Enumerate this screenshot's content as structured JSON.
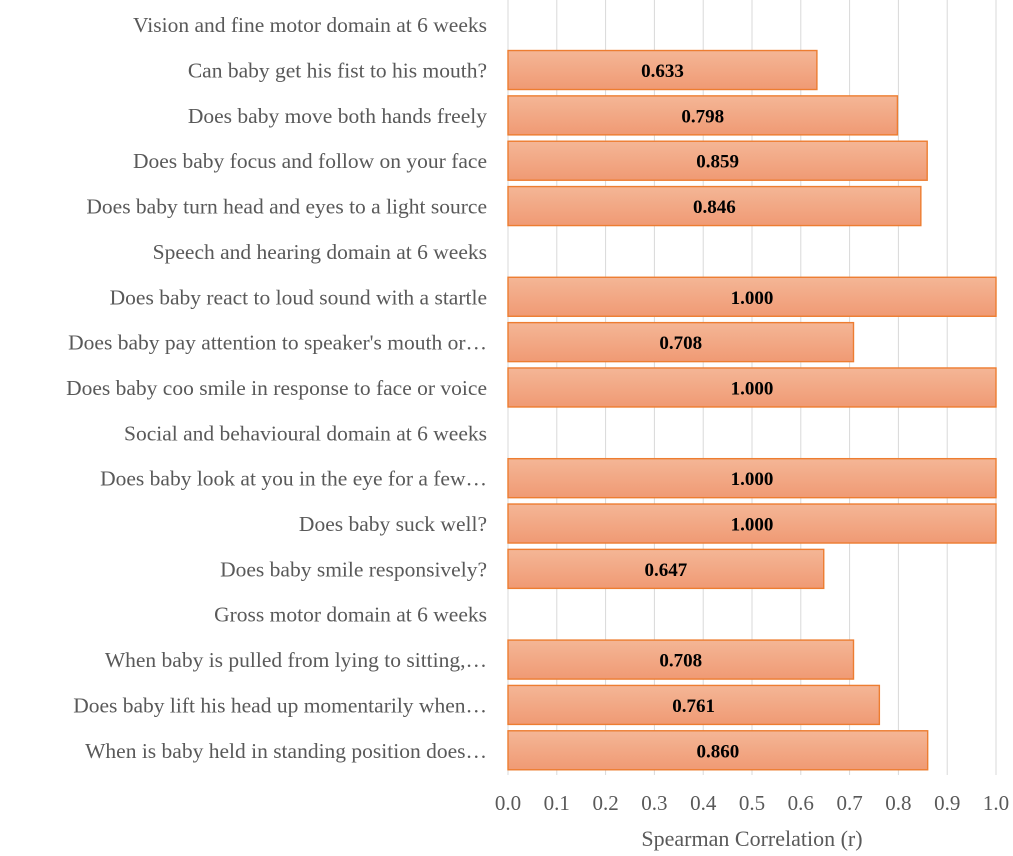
{
  "chart_data": {
    "type": "bar",
    "orientation": "horizontal",
    "title": "",
    "xlabel": "Spearman Correlation (r)",
    "ylabel": "",
    "xlim": [
      0.0,
      1.0
    ],
    "x_ticks": [
      "0.0",
      "0.1",
      "0.2",
      "0.3",
      "0.4",
      "0.5",
      "0.6",
      "0.7",
      "0.8",
      "0.9",
      "1.0"
    ],
    "grid": "vertical",
    "legend": "none",
    "categories": [
      "Vision and fine motor domain at 6 weeks",
      "Can baby get his fist to his mouth?",
      "Does baby move both hands freely",
      "Does baby focus and follow on your face",
      "Does baby turn head and eyes to a light source",
      "Speech and hearing domain at 6 weeks",
      "Does baby react to loud sound with a startle",
      "Does baby pay attention to speaker's mouth or…",
      "Does baby coo smile in response to face or voice",
      "Social and behavioural domain at 6 weeks",
      "Does baby look at you in the eye for a few…",
      "Does baby suck well?",
      "Does baby smile responsively?",
      "Gross motor domain at 6 weeks",
      "When baby is pulled from lying to sitting,…",
      "Does baby lift his head up momentarily when…",
      "When is baby held in standing position does…"
    ],
    "values": [
      null,
      0.633,
      0.798,
      0.859,
      0.846,
      null,
      1.0,
      0.708,
      1.0,
      null,
      1.0,
      1.0,
      0.647,
      null,
      0.708,
      0.761,
      0.86
    ],
    "data_labels": [
      "",
      "0.633",
      "0.798",
      "0.859",
      "0.846",
      "",
      "1.000",
      "0.708",
      "1.000",
      "",
      "1.000",
      "1.000",
      "0.647",
      "",
      "0.708",
      "0.761",
      "0.860"
    ],
    "colors": {
      "bar_top": "#f4b696",
      "bar_bottom": "#f09a74",
      "bar_edge": "#ed7d31",
      "grid": "#d9d9d9",
      "text": "#595959",
      "data_label": "#000000"
    }
  }
}
